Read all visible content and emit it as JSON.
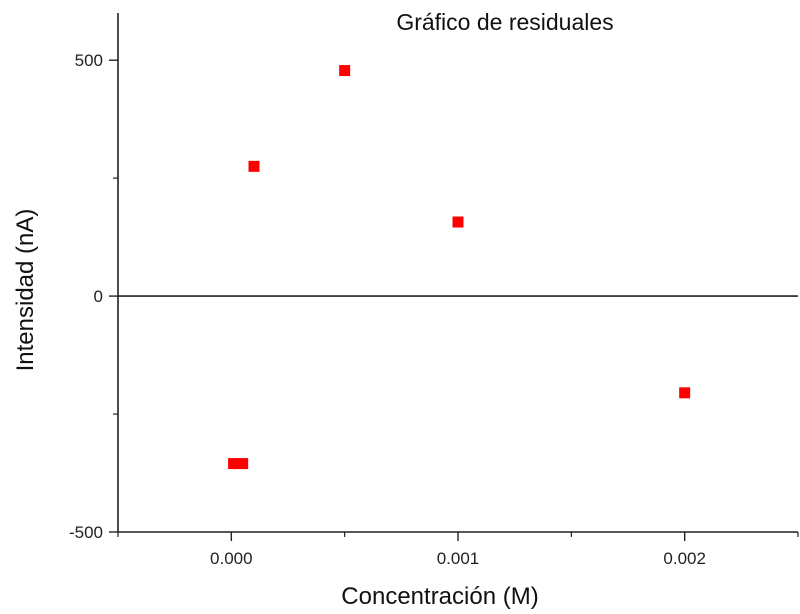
{
  "chart_data": {
    "type": "scatter",
    "title": "Gráfico de residuales",
    "xlabel": "Concentración (M)",
    "ylabel": "Intensidad (nA)",
    "xlim": [
      -0.0005,
      0.0025
    ],
    "ylim": [
      -500,
      600
    ],
    "x_ticks": [
      {
        "value": 0.0,
        "label": "0.000"
      },
      {
        "value": 0.001,
        "label": "0.001"
      },
      {
        "value": 0.002,
        "label": "0.002"
      }
    ],
    "x_minor_ticks": [
      -0.0005,
      0.0005,
      0.0015,
      0.0025
    ],
    "y_ticks": [
      {
        "value": 500,
        "label": "500"
      },
      {
        "value": 0,
        "label": "0"
      },
      {
        "value": -500,
        "label": "-500"
      }
    ],
    "y_minor_ticks": [
      250,
      -250
    ],
    "zero_line": true,
    "grid": false,
    "marker_color": "#ff0000",
    "series": [
      {
        "x": [
          1e-05,
          5e-05,
          0.0001,
          0.0005,
          0.001,
          0.002
        ],
        "y": [
          -355,
          -355,
          275,
          478,
          157,
          -205
        ]
      }
    ]
  }
}
